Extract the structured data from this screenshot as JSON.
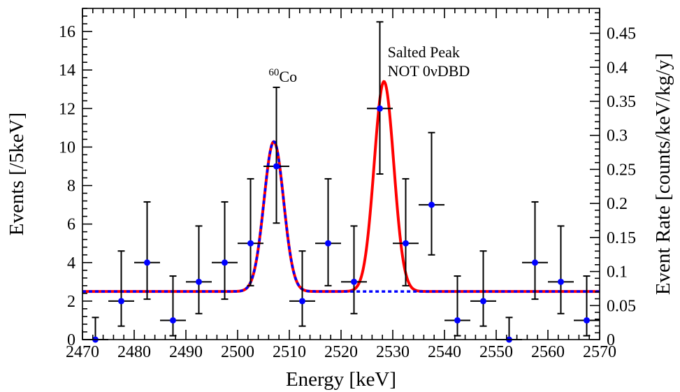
{
  "chart_data": {
    "type": "scatter",
    "xlabel": "Energy [keV]",
    "ylabel": "Events [/5keV]",
    "y2label": "Event Rate [counts/keV/kg/y]",
    "xlim": [
      2470,
      2570
    ],
    "ylim": [
      0,
      17.2
    ],
    "y2lim": [
      0,
      0.4865
    ],
    "x_ticks": [
      "2470",
      "2480",
      "2490",
      "2500",
      "2510",
      "2520",
      "2530",
      "2540",
      "2550",
      "2560",
      "2570"
    ],
    "y_ticks": [
      "0",
      "2",
      "4",
      "6",
      "8",
      "10",
      "12",
      "14",
      "16"
    ],
    "y2_ticks": [
      "0",
      "0.05",
      "0.1",
      "0.15",
      "0.2",
      "0.25",
      "0.3",
      "0.35",
      "0.4",
      "0.45"
    ],
    "grid": false,
    "annotations": {
      "co60_superscript": "60",
      "co60_label": "Co",
      "salted_line1": "Salted Peak",
      "salted_line2": "NOT 0νDBD"
    },
    "series": [
      {
        "kind": "points_with_errors",
        "color": "#0000ff",
        "bin_half_width": 2.5,
        "points": [
          {
            "x": 2472.5,
            "y": 0,
            "ylo": 0,
            "yhi": 1.15
          },
          {
            "x": 2477.5,
            "y": 2,
            "ylo": 0.7,
            "yhi": 4.6
          },
          {
            "x": 2482.5,
            "y": 4,
            "ylo": 2.1,
            "yhi": 7.15
          },
          {
            "x": 2487.5,
            "y": 1,
            "ylo": 0.2,
            "yhi": 3.3
          },
          {
            "x": 2492.5,
            "y": 3,
            "ylo": 1.35,
            "yhi": 5.9
          },
          {
            "x": 2497.5,
            "y": 4,
            "ylo": 2.1,
            "yhi": 7.15
          },
          {
            "x": 2502.5,
            "y": 5,
            "ylo": 2.8,
            "yhi": 8.35
          },
          {
            "x": 2507.5,
            "y": 9,
            "ylo": 6.05,
            "yhi": 13.1
          },
          {
            "x": 2512.5,
            "y": 2,
            "ylo": 0.7,
            "yhi": 4.6
          },
          {
            "x": 2517.5,
            "y": 5,
            "ylo": 2.8,
            "yhi": 8.35
          },
          {
            "x": 2522.5,
            "y": 3,
            "ylo": 1.35,
            "yhi": 5.9
          },
          {
            "x": 2527.5,
            "y": 12,
            "ylo": 8.6,
            "yhi": 16.5
          },
          {
            "x": 2532.5,
            "y": 5,
            "ylo": 2.8,
            "yhi": 8.35
          },
          {
            "x": 2537.5,
            "y": 7,
            "ylo": 4.4,
            "yhi": 10.75
          },
          {
            "x": 2542.5,
            "y": 1,
            "ylo": 0.2,
            "yhi": 3.3
          },
          {
            "x": 2547.5,
            "y": 2,
            "ylo": 0.7,
            "yhi": 4.6
          },
          {
            "x": 2552.5,
            "y": 0,
            "ylo": 0,
            "yhi": 1.15
          },
          {
            "x": 2557.5,
            "y": 4,
            "ylo": 2.1,
            "yhi": 7.15
          },
          {
            "x": 2562.5,
            "y": 3,
            "ylo": 1.35,
            "yhi": 5.9
          },
          {
            "x": 2567.5,
            "y": 1,
            "ylo": 0.2,
            "yhi": 3.3
          }
        ]
      },
      {
        "kind": "fit_with_salted_peak",
        "color": "#ff0000",
        "baseline": 2.5,
        "peaks": [
          {
            "center": 2507,
            "amplitude": 7.78,
            "sigma": 1.9
          },
          {
            "center": 2528.3,
            "amplitude": 10.9,
            "sigma": 1.9
          }
        ]
      },
      {
        "kind": "fit_background_only",
        "color": "#0000ff",
        "dashed": true,
        "baseline": 2.5,
        "peaks": [
          {
            "center": 2507,
            "amplitude": 7.78,
            "sigma": 1.9
          }
        ]
      }
    ]
  }
}
